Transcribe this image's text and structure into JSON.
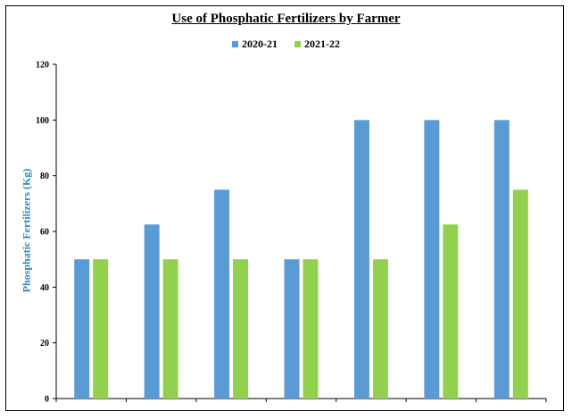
{
  "chart_data": {
    "type": "bar",
    "title": "Use of Phosphatic Fertilizers by Farmer",
    "xlabel": "",
    "ylabel": "Phosphatic Fertilizers (Kg)",
    "ylim": [
      0,
      120
    ],
    "yticks": [
      "0",
      "20",
      "40",
      "60",
      "80",
      "100",
      "120"
    ],
    "categories": [
      "",
      "",
      "",
      "",
      "",
      "",
      ""
    ],
    "series": [
      {
        "name": "2020-21",
        "color": "#5b9bd5",
        "values": [
          50,
          62.5,
          75,
          50,
          100,
          100,
          100
        ]
      },
      {
        "name": "2021-22",
        "color": "#92d050",
        "values": [
          50,
          50,
          50,
          50,
          50,
          62.5,
          75
        ]
      }
    ],
    "grid": false,
    "legend_position": "top"
  }
}
